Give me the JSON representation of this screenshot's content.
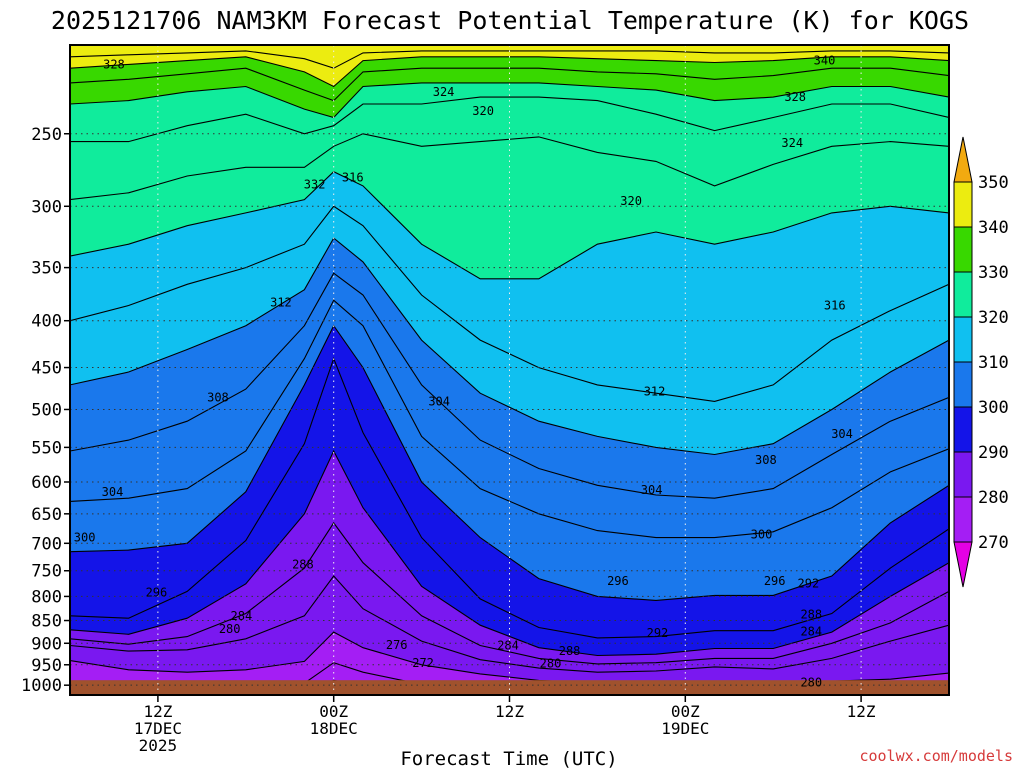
{
  "chart_data": {
    "type": "heatmap",
    "title": "2025121706 NAM3KM Forecast Potential Temperature (K) for KOGS",
    "xlabel": "Forecast Time (UTC)",
    "ylabel": "",
    "credit": "coolwx.com/models",
    "x_hours_range": [
      0,
      60
    ],
    "y_pressure_range": [
      200,
      1025
    ],
    "y_scale": "log",
    "y_ticks": [
      250,
      300,
      350,
      400,
      450,
      500,
      550,
      600,
      650,
      700,
      750,
      800,
      850,
      900,
      950,
      1000
    ],
    "x_ticks": [
      {
        "hour": 6,
        "line1": "12Z",
        "line2": "17DEC",
        "line3": "2025"
      },
      {
        "hour": 18,
        "line1": "00Z",
        "line2": "18DEC",
        "line3": ""
      },
      {
        "hour": 30,
        "line1": "12Z",
        "line2": "",
        "line3": ""
      },
      {
        "hour": 42,
        "line1": "00Z",
        "line2": "19DEC",
        "line3": ""
      },
      {
        "hour": 54,
        "line1": "12Z",
        "line2": "",
        "line3": ""
      }
    ],
    "colorbar": {
      "levels": [
        270,
        280,
        290,
        300,
        310,
        320,
        330,
        340,
        350
      ],
      "colors": [
        "#e400e4",
        "#a41ef4",
        "#7a18f0",
        "#1414e8",
        "#1a78ec",
        "#10c0f0",
        "#10ec9c",
        "#38d800",
        "#ecec10",
        "#f2aa10"
      ]
    },
    "grid": "dotted",
    "surface_color": "#a0522d",
    "surface_pressure": 1000,
    "contour_interval": 2,
    "isentrope_pressures": {
      "hours": [
        0,
        4,
        8,
        12,
        16,
        18,
        20,
        24,
        28,
        32,
        36,
        40,
        44,
        48,
        52,
        56,
        60
      ],
      "levels": {
        "272": [
          1022,
          1022,
          1022,
          1022,
          1020,
          988,
          1000,
          1022,
          1022,
          1022,
          1022,
          1022,
          1022,
          1022,
          1022,
          1022,
          1022
        ],
        "276": [
          1012,
          1014,
          1012,
          1008,
          995,
          945,
          968,
          998,
          1010,
          1012,
          1014,
          1014,
          1014,
          1014,
          1012,
          1008,
          995
        ],
        "280": [
          940,
          962,
          968,
          962,
          942,
          875,
          910,
          950,
          972,
          988,
          995,
          995,
          990,
          992,
          990,
          985,
          970
        ],
        "284": [
          905,
          918,
          915,
          890,
          840,
          760,
          825,
          895,
          938,
          958,
          968,
          965,
          955,
          960,
          935,
          895,
          860
        ],
        "288": [
          890,
          902,
          885,
          835,
          745,
          665,
          735,
          840,
          905,
          935,
          948,
          945,
          935,
          935,
          900,
          855,
          790
        ],
        "292": [
          870,
          880,
          845,
          775,
          650,
          555,
          640,
          780,
          860,
          910,
          928,
          925,
          912,
          912,
          875,
          800,
          735
        ],
        "296": [
          840,
          845,
          790,
          695,
          545,
          440,
          530,
          690,
          805,
          865,
          888,
          885,
          872,
          872,
          835,
          745,
          675
        ],
        "300": [
          715,
          712,
          700,
          615,
          470,
          405,
          450,
          600,
          690,
          765,
          800,
          808,
          798,
          798,
          760,
          665,
          605
        ],
        "304": [
          630,
          625,
          610,
          555,
          440,
          380,
          405,
          535,
          610,
          650,
          678,
          690,
          690,
          680,
          640,
          585,
          552
        ],
        "308": [
          555,
          540,
          515,
          475,
          405,
          355,
          375,
          470,
          540,
          580,
          605,
          620,
          625,
          610,
          560,
          515,
          485
        ],
        "312": [
          470,
          455,
          430,
          405,
          370,
          325,
          345,
          420,
          480,
          515,
          535,
          550,
          560,
          545,
          500,
          455,
          420
        ],
        "316": [
          400,
          385,
          365,
          350,
          330,
          300,
          315,
          375,
          420,
          450,
          470,
          480,
          490,
          470,
          420,
          390,
          365
        ],
        "320": [
          340,
          330,
          315,
          305,
          295,
          275,
          285,
          330,
          360,
          360,
          330,
          320,
          330,
          320,
          305,
          300,
          305
        ],
        "324": [
          295,
          290,
          278,
          272,
          272,
          258,
          250,
          258,
          255,
          252,
          262,
          268,
          285,
          270,
          258,
          255,
          258
        ],
        "328": [
          255,
          255,
          245,
          238,
          250,
          245,
          232,
          232,
          228,
          228,
          230,
          238,
          248,
          240,
          232,
          232,
          240
        ],
        "332": [
          232,
          230,
          225,
          222,
          235,
          240,
          222,
          220,
          220,
          220,
          222,
          224,
          230,
          228,
          222,
          222,
          228
        ],
        "336": [
          220,
          218,
          215,
          212,
          224,
          230,
          214,
          212,
          212,
          212,
          214,
          215,
          218,
          216,
          212,
          212,
          216
        ],
        "340": [
          212,
          210,
          208,
          206,
          214,
          222,
          208,
          206,
          206,
          206,
          207,
          208,
          209,
          208,
          206,
          206,
          208
        ],
        "344": [
          206,
          205,
          204,
          203,
          207,
          212,
          204,
          203,
          203,
          203,
          203,
          203,
          204,
          204,
          203,
          203,
          204
        ]
      }
    },
    "contour_labels": [
      {
        "text": "328",
        "hour": 3,
        "p": 210
      },
      {
        "text": "340",
        "hour": 51.5,
        "p": 208
      },
      {
        "text": "324",
        "hour": 25.5,
        "p": 225
      },
      {
        "text": "320",
        "hour": 28.2,
        "p": 236
      },
      {
        "text": "328",
        "hour": 49.5,
        "p": 228
      },
      {
        "text": "324",
        "hour": 49.3,
        "p": 256
      },
      {
        "text": "332",
        "hour": 16.7,
        "p": 284
      },
      {
        "text": "316",
        "hour": 19.3,
        "p": 279
      },
      {
        "text": "320",
        "hour": 38.3,
        "p": 296
      },
      {
        "text": "312",
        "hour": 14.4,
        "p": 382
      },
      {
        "text": "316",
        "hour": 52.2,
        "p": 385
      },
      {
        "text": "308",
        "hour": 10.1,
        "p": 485
      },
      {
        "text": "304",
        "hour": 25.2,
        "p": 490
      },
      {
        "text": "312",
        "hour": 39.9,
        "p": 478
      },
      {
        "text": "304",
        "hour": 52.7,
        "p": 532
      },
      {
        "text": "308",
        "hour": 47.5,
        "p": 568
      },
      {
        "text": "304",
        "hour": 2.9,
        "p": 615
      },
      {
        "text": "304",
        "hour": 39.7,
        "p": 612
      },
      {
        "text": "300",
        "hour": 1,
        "p": 690
      },
      {
        "text": "300",
        "hour": 47.2,
        "p": 685
      },
      {
        "text": "288",
        "hour": 15.9,
        "p": 738
      },
      {
        "text": "296",
        "hour": 5.9,
        "p": 792
      },
      {
        "text": "296",
        "hour": 37.4,
        "p": 770
      },
      {
        "text": "296",
        "hour": 48.1,
        "p": 770
      },
      {
        "text": "292",
        "hour": 50.4,
        "p": 774
      },
      {
        "text": "284",
        "hour": 11.7,
        "p": 840
      },
      {
        "text": "280",
        "hour": 10.9,
        "p": 868
      },
      {
        "text": "288",
        "hour": 50.6,
        "p": 837
      },
      {
        "text": "284",
        "hour": 50.6,
        "p": 874
      },
      {
        "text": "292",
        "hour": 40.1,
        "p": 877
      },
      {
        "text": "276",
        "hour": 22.3,
        "p": 904
      },
      {
        "text": "284",
        "hour": 29.9,
        "p": 905
      },
      {
        "text": "288",
        "hour": 34.1,
        "p": 918
      },
      {
        "text": "272",
        "hour": 24.1,
        "p": 946
      },
      {
        "text": "280",
        "hour": 32.8,
        "p": 947
      },
      {
        "text": "280",
        "hour": 50.6,
        "p": 993
      }
    ]
  }
}
